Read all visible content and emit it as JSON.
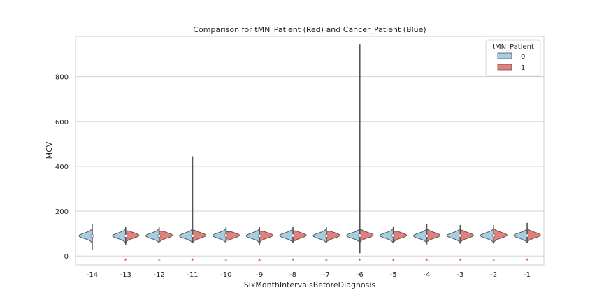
{
  "chart_data": {
    "type": "violin",
    "title": "Comparison for tMN_Patient (Red) and Cancer_Patient (Blue)",
    "xlabel": "SixMonthIntervalsBeforeDiagnosis",
    "ylabel": "MCV",
    "categories": [
      "-14",
      "-13",
      "-12",
      "-11",
      "-10",
      "-9",
      "-8",
      "-7",
      "-6",
      "-5",
      "-4",
      "-3",
      "-2",
      "-1"
    ],
    "yticks": [
      0,
      200,
      400,
      600,
      800
    ],
    "ylim": [
      -40,
      980
    ],
    "grid": true,
    "legend": {
      "title": "tMN_Patient",
      "placement": "top-right",
      "entries": [
        {
          "label": "0",
          "color": "#a6cee3"
        },
        {
          "label": "1",
          "color": "#e47f7b"
        }
      ]
    },
    "significance_marker": "*",
    "significant_categories": [
      "-13",
      "-12",
      "-11",
      "-10",
      "-9",
      "-8",
      "-7",
      "-6",
      "-5",
      "-4",
      "-3",
      "-2",
      "-1"
    ],
    "series": [
      {
        "name": "0",
        "color": "#a6cee3",
        "min": [
          28,
          48,
          60,
          58,
          62,
          48,
          58,
          58,
          12,
          58,
          52,
          55,
          55,
          60
        ],
        "max": [
          142,
          132,
          132,
          445,
          132,
          130,
          132,
          130,
          945,
          132,
          142,
          138,
          138,
          148
        ],
        "median": [
          90,
          90,
          90,
          90,
          91,
          90,
          91,
          90,
          91,
          91,
          90,
          91,
          91,
          91
        ]
      },
      {
        "name": "1",
        "color": "#e47f7b",
        "min": [
          null,
          60,
          65,
          60,
          70,
          62,
          68,
          66,
          60,
          65,
          66,
          64,
          62,
          62
        ],
        "max": [
          null,
          112,
          110,
          115,
          108,
          110,
          112,
          110,
          118,
          110,
          118,
          115,
          120,
          132
        ],
        "median": [
          null,
          92,
          92,
          92,
          92,
          92,
          92,
          92,
          93,
          92,
          92,
          92,
          93,
          93
        ]
      }
    ]
  }
}
